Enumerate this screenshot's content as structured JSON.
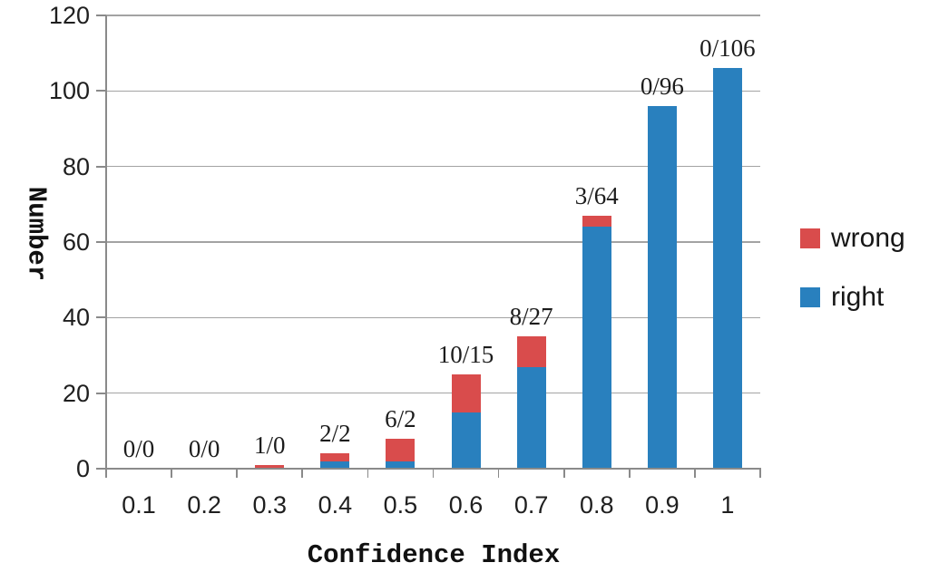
{
  "chart_data": {
    "type": "bar",
    "stacked": true,
    "xlabel": "Confidence Index",
    "ylabel": "Number",
    "categories": [
      "0.1",
      "0.2",
      "0.3",
      "0.4",
      "0.5",
      "0.6",
      "0.7",
      "0.8",
      "0.9",
      "1"
    ],
    "series": [
      {
        "name": "right",
        "color": "#2980be",
        "values": [
          0,
          0,
          0,
          2,
          2,
          15,
          27,
          64,
          96,
          106
        ]
      },
      {
        "name": "wrong",
        "color": "#d94c4c",
        "values": [
          0,
          0,
          1,
          2,
          6,
          10,
          8,
          3,
          0,
          0
        ]
      }
    ],
    "bar_labels": [
      "0/0",
      "0/0",
      "1/0",
      "2/2",
      "6/2",
      "10/15",
      "8/27",
      "3/64",
      "0/96",
      "0/106"
    ],
    "bar_label_format": "wrong/right",
    "ylim": [
      0,
      120
    ],
    "yticks": [
      0,
      20,
      40,
      60,
      80,
      100,
      120
    ],
    "grid": true,
    "legend": {
      "position": "right",
      "entries": [
        {
          "label": "wrong",
          "color": "#d94c4c"
        },
        {
          "label": "right",
          "color": "#2980be"
        }
      ]
    },
    "colors": {
      "gridline": "#a3a3a3",
      "axis": "#8a8a8a"
    }
  }
}
